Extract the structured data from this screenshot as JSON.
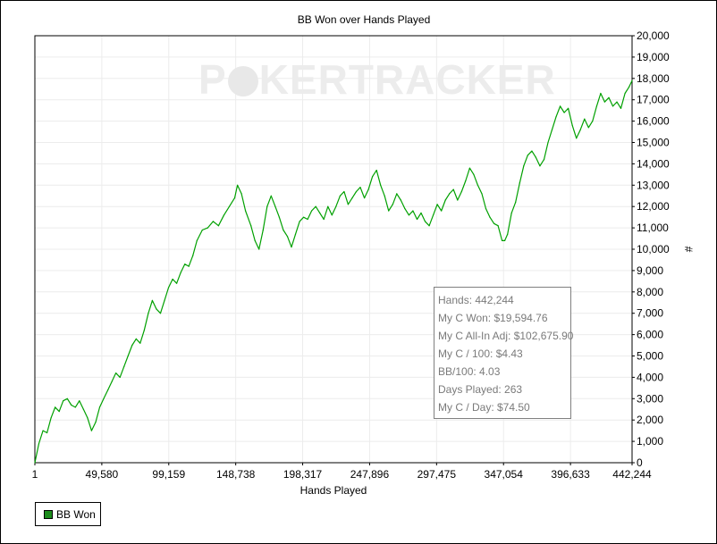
{
  "chart_data": {
    "type": "line",
    "title": "BB Won over Hands Played",
    "xlabel": "Hands Played",
    "ylabel": "#",
    "xlim": [
      1,
      442244
    ],
    "ylim": [
      0,
      20000
    ],
    "x_ticks": [
      1,
      49580,
      99159,
      148738,
      198317,
      247896,
      297475,
      347054,
      396633,
      442244
    ],
    "x_tick_labels": [
      "1",
      "49,580",
      "99,159",
      "148,738",
      "198,317",
      "247,896",
      "297,475",
      "347,054",
      "396,633",
      "442,244"
    ],
    "y_ticks": [
      0,
      1000,
      2000,
      3000,
      4000,
      5000,
      6000,
      7000,
      8000,
      9000,
      10000,
      11000,
      12000,
      13000,
      14000,
      15000,
      16000,
      17000,
      18000,
      19000,
      20000
    ],
    "y_tick_labels": [
      "0",
      "1,000",
      "2,000",
      "3,000",
      "4,000",
      "5,000",
      "6,000",
      "7,000",
      "8,000",
      "9,000",
      "10,000",
      "11,000",
      "12,000",
      "13,000",
      "14,000",
      "15,000",
      "16,000",
      "17,000",
      "18,000",
      "19,000",
      "20,000"
    ],
    "grid": true,
    "legend_placement": "bottom-left",
    "series": [
      {
        "name": "BB Won",
        "color": "#00a000",
        "x": [
          1,
          3000,
          6000,
          9000,
          12000,
          15000,
          18000,
          21000,
          24000,
          27000,
          30000,
          33000,
          36000,
          39000,
          42000,
          45000,
          48000,
          51000,
          54000,
          57000,
          60000,
          63000,
          66000,
          69000,
          72000,
          75000,
          78000,
          81000,
          84000,
          87000,
          90000,
          93000,
          96000,
          99000,
          102000,
          105000,
          108000,
          111000,
          114000,
          117000,
          120000,
          124000,
          128000,
          132000,
          136000,
          140000,
          144000,
          148000,
          150000,
          153000,
          156000,
          160000,
          163000,
          166000,
          169000,
          172000,
          175000,
          178000,
          181000,
          184000,
          187000,
          190000,
          193000,
          196000,
          199000,
          202000,
          205000,
          208000,
          211000,
          214000,
          217000,
          220000,
          223000,
          226000,
          229000,
          232000,
          235000,
          238000,
          241000,
          244000,
          247000,
          250000,
          253000,
          256000,
          259000,
          262000,
          265000,
          268000,
          271000,
          274000,
          277000,
          280000,
          283000,
          286000,
          289000,
          292000,
          295000,
          298000,
          301000,
          304000,
          307000,
          310000,
          313000,
          316000,
          319000,
          322000,
          325000,
          328000,
          331000,
          334000,
          337000,
          340000,
          343000,
          346000,
          348000,
          350000,
          353000,
          356000,
          359000,
          362000,
          365000,
          368000,
          371000,
          374000,
          377000,
          380000,
          383000,
          386000,
          389000,
          392000,
          395000,
          398000,
          401000,
          404000,
          407000,
          410000,
          413000,
          416000,
          419000,
          422000,
          425000,
          428000,
          431000,
          434000,
          437000,
          440000,
          442244
        ],
        "values": [
          0,
          900,
          1500,
          1400,
          2100,
          2600,
          2400,
          2900,
          3000,
          2700,
          2600,
          2900,
          2500,
          2100,
          1500,
          1900,
          2600,
          3000,
          3400,
          3800,
          4200,
          4000,
          4500,
          5000,
          5500,
          5800,
          5600,
          6200,
          7000,
          7600,
          7200,
          7000,
          7600,
          8200,
          8600,
          8400,
          8900,
          9300,
          9200,
          9700,
          10400,
          10900,
          11000,
          11300,
          11100,
          11600,
          12000,
          12400,
          13000,
          12600,
          11800,
          11100,
          10400,
          10000,
          10900,
          12000,
          12500,
          12000,
          11500,
          10900,
          10600,
          10100,
          10700,
          11300,
          11500,
          11400,
          11800,
          12000,
          11700,
          11400,
          12000,
          11600,
          12000,
          12500,
          12700,
          12100,
          12400,
          12700,
          12900,
          12400,
          12800,
          13400,
          13700,
          13000,
          12500,
          11800,
          12100,
          12600,
          12300,
          11900,
          11600,
          11800,
          11400,
          11700,
          11300,
          11100,
          11600,
          12100,
          11800,
          12300,
          12600,
          12800,
          12300,
          12700,
          13200,
          13800,
          13500,
          13000,
          12600,
          11900,
          11500,
          11200,
          11100,
          10400,
          10400,
          10700,
          11700,
          12200,
          13100,
          13900,
          14400,
          14600,
          14300,
          13900,
          14200,
          15000,
          15600,
          16200,
          16700,
          16400,
          16600,
          15800,
          15200,
          15600,
          16100,
          15700,
          16000,
          16700,
          17300,
          16900,
          17100,
          16700,
          16900,
          16600,
          17300,
          17600,
          17900
        ]
      }
    ]
  },
  "watermark": {
    "text_left": "P",
    "text_mid": "KER",
    "text_right": "TRACKER"
  },
  "info_box": {
    "lines": [
      "Hands: 442,244",
      "My C Won: $19,594.76",
      "My C All-In Adj: $102,675.90",
      "My C / 100: $4.43",
      "BB/100: 4.03",
      "Days Played: 263",
      "My C / Day: $74.50"
    ]
  },
  "legend": {
    "label": "BB Won",
    "color": "#1c8c1c"
  }
}
